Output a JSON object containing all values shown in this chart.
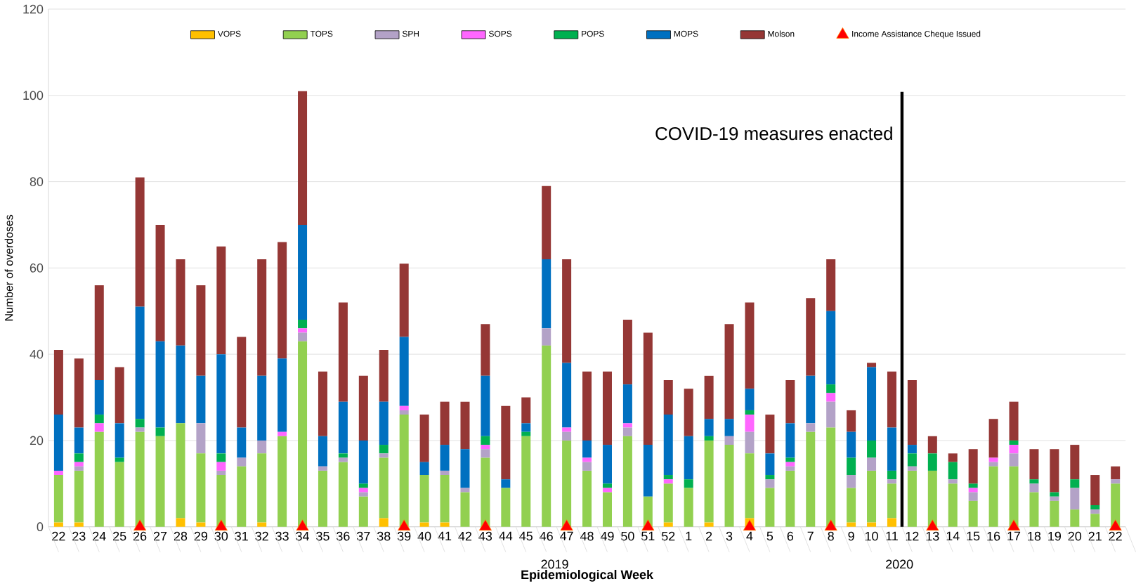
{
  "chart_data": {
    "type": "bar",
    "stacked": true,
    "xlabel": "Epidemiological Week",
    "ylabel": "Number of overdoses",
    "categories": [
      "22",
      "23",
      "24",
      "25",
      "26",
      "27",
      "28",
      "29",
      "30",
      "31",
      "32",
      "33",
      "34",
      "35",
      "36",
      "37",
      "38",
      "39",
      "40",
      "41",
      "42",
      "43",
      "44",
      "45",
      "46",
      "47",
      "48",
      "49",
      "50",
      "51",
      "52",
      "1",
      "2",
      "3",
      "4",
      "5",
      "6",
      "7",
      "8",
      "9",
      "10",
      "11",
      "12",
      "13",
      "14",
      "15",
      "16",
      "17",
      "18",
      "19",
      "20",
      "21",
      "22"
    ],
    "series": [
      {
        "name": "VOPS",
        "color": "#ffc000",
        "values": [
          1,
          1,
          0,
          0,
          0,
          0,
          2,
          1,
          0,
          0,
          1,
          0,
          0,
          0,
          0,
          0,
          2,
          0,
          1,
          1,
          0,
          0,
          0,
          0,
          0,
          0,
          0,
          0,
          0,
          0,
          1,
          0,
          1,
          0,
          2,
          0,
          0,
          0,
          0,
          1,
          1,
          2,
          0,
          0,
          0,
          0,
          0,
          0,
          0,
          0,
          0,
          0,
          0
        ]
      },
      {
        "name": "TOPS",
        "color": "#92d050",
        "values": [
          11,
          12,
          22,
          15,
          22,
          21,
          22,
          16,
          12,
          14,
          16,
          21,
          43,
          13,
          15,
          7,
          14,
          26,
          11,
          11,
          8,
          16,
          9,
          21,
          42,
          20,
          13,
          8,
          21,
          7,
          9,
          9,
          19,
          19,
          15,
          9,
          13,
          22,
          23,
          8,
          12,
          8,
          13,
          13,
          10,
          6,
          14,
          14,
          8,
          6,
          4,
          3,
          10
        ]
      },
      {
        "name": "SPH",
        "color": "#b3a2c7",
        "values": [
          0,
          1,
          0,
          0,
          1,
          0,
          0,
          7,
          1,
          2,
          3,
          0,
          2,
          1,
          1,
          1,
          1,
          1,
          0,
          1,
          1,
          2,
          0,
          0,
          4,
          2,
          2,
          0,
          2,
          0,
          0,
          0,
          0,
          2,
          5,
          2,
          1,
          2,
          6,
          3,
          3,
          1,
          1,
          0,
          1,
          2,
          1,
          3,
          2,
          1,
          5,
          1,
          1
        ]
      },
      {
        "name": "SOPS",
        "color": "#ff66ff",
        "values": [
          1,
          1,
          2,
          0,
          0,
          0,
          0,
          0,
          2,
          0,
          0,
          1,
          1,
          0,
          0,
          1,
          0,
          1,
          0,
          0,
          0,
          1,
          0,
          0,
          0,
          1,
          1,
          1,
          1,
          0,
          1,
          0,
          0,
          0,
          4,
          0,
          1,
          0,
          2,
          0,
          0,
          0,
          0,
          0,
          0,
          1,
          1,
          2,
          0,
          0,
          0,
          0,
          0
        ]
      },
      {
        "name": "POPS",
        "color": "#00b050",
        "values": [
          0,
          2,
          2,
          1,
          2,
          2,
          0,
          0,
          2,
          0,
          0,
          0,
          2,
          0,
          1,
          1,
          2,
          0,
          0,
          0,
          0,
          2,
          0,
          1,
          0,
          0,
          0,
          1,
          0,
          0,
          1,
          2,
          1,
          0,
          1,
          1,
          1,
          0,
          2,
          4,
          4,
          2,
          3,
          4,
          4,
          1,
          0,
          1,
          1,
          1,
          2,
          1,
          0
        ]
      },
      {
        "name": "MOPS",
        "color": "#0070c0",
        "values": [
          13,
          6,
          8,
          8,
          26,
          20,
          18,
          11,
          23,
          7,
          15,
          17,
          22,
          7,
          12,
          10,
          10,
          16,
          3,
          6,
          9,
          14,
          2,
          2,
          16,
          15,
          4,
          9,
          9,
          12,
          14,
          10,
          4,
          4,
          5,
          5,
          8,
          11,
          17,
          6,
          17,
          10,
          2,
          0,
          0,
          0,
          0,
          0,
          0,
          0,
          0,
          0,
          0
        ]
      },
      {
        "name": "Molson",
        "color": "#953735",
        "values": [
          15,
          16,
          22,
          13,
          30,
          27,
          20,
          21,
          25,
          21,
          27,
          27,
          31,
          15,
          23,
          15,
          12,
          17,
          11,
          10,
          11,
          12,
          17,
          6,
          17,
          24,
          16,
          17,
          15,
          26,
          8,
          11,
          10,
          22,
          20,
          9,
          10,
          18,
          12,
          5,
          1,
          13,
          15,
          4,
          2,
          8,
          9,
          9,
          7,
          10,
          8,
          7,
          3
        ]
      },
      {
        "name": "Income Assistance Cheque Issued",
        "type": "scatter",
        "marker": "triangle",
        "color": "#ff0000",
        "values": [
          null,
          null,
          null,
          null,
          0,
          null,
          null,
          null,
          0,
          null,
          null,
          null,
          0,
          null,
          null,
          null,
          null,
          0,
          null,
          null,
          null,
          0,
          null,
          null,
          null,
          0,
          null,
          null,
          null,
          0,
          null,
          null,
          null,
          null,
          0,
          null,
          null,
          null,
          0,
          null,
          null,
          null,
          null,
          0,
          null,
          null,
          null,
          0,
          null,
          null,
          null,
          null,
          0
        ]
      }
    ],
    "ylim": [
      0,
      120
    ],
    "yticks": [
      0,
      20,
      40,
      60,
      80,
      100,
      120
    ],
    "grid": "y",
    "legend": "top",
    "ref_lines": [
      {
        "axis": "x",
        "value": "11",
        "label": "COVID-19 measures enacted",
        "color": "#000000"
      }
    ],
    "annotations": [
      "2019",
      "2020"
    ]
  }
}
